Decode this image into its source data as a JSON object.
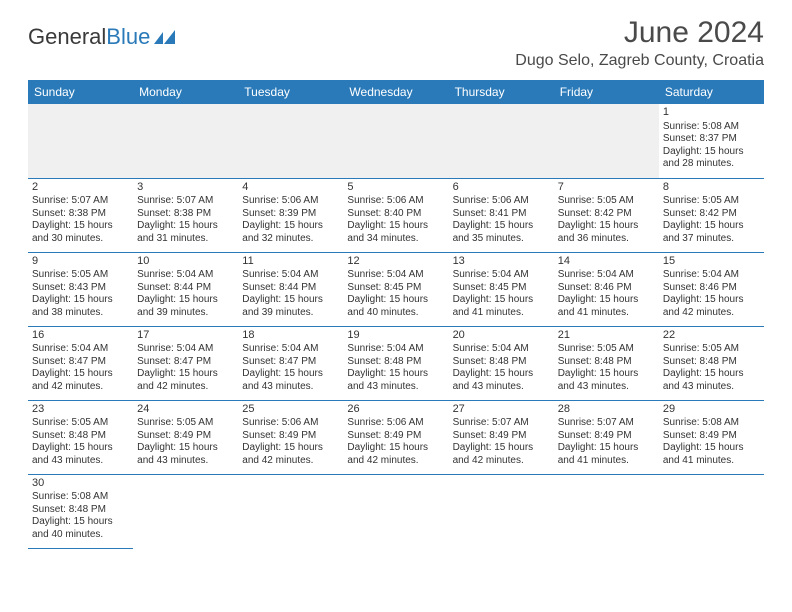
{
  "logo": {
    "general": "General",
    "blue": "Blue"
  },
  "title": "June 2024",
  "location": "Dugo Selo, Zagreb County, Croatia",
  "headers": [
    "Sunday",
    "Monday",
    "Tuesday",
    "Wednesday",
    "Thursday",
    "Friday",
    "Saturday"
  ],
  "header_bg": "#2a7ab9",
  "header_fg": "#ffffff",
  "days": {
    "1": {
      "sunrise": "5:08 AM",
      "sunset": "8:37 PM",
      "daylight": "15 hours and 28 minutes."
    },
    "2": {
      "sunrise": "5:07 AM",
      "sunset": "8:38 PM",
      "daylight": "15 hours and 30 minutes."
    },
    "3": {
      "sunrise": "5:07 AM",
      "sunset": "8:38 PM",
      "daylight": "15 hours and 31 minutes."
    },
    "4": {
      "sunrise": "5:06 AM",
      "sunset": "8:39 PM",
      "daylight": "15 hours and 32 minutes."
    },
    "5": {
      "sunrise": "5:06 AM",
      "sunset": "8:40 PM",
      "daylight": "15 hours and 34 minutes."
    },
    "6": {
      "sunrise": "5:06 AM",
      "sunset": "8:41 PM",
      "daylight": "15 hours and 35 minutes."
    },
    "7": {
      "sunrise": "5:05 AM",
      "sunset": "8:42 PM",
      "daylight": "15 hours and 36 minutes."
    },
    "8": {
      "sunrise": "5:05 AM",
      "sunset": "8:42 PM",
      "daylight": "15 hours and 37 minutes."
    },
    "9": {
      "sunrise": "5:05 AM",
      "sunset": "8:43 PM",
      "daylight": "15 hours and 38 minutes."
    },
    "10": {
      "sunrise": "5:04 AM",
      "sunset": "8:44 PM",
      "daylight": "15 hours and 39 minutes."
    },
    "11": {
      "sunrise": "5:04 AM",
      "sunset": "8:44 PM",
      "daylight": "15 hours and 39 minutes."
    },
    "12": {
      "sunrise": "5:04 AM",
      "sunset": "8:45 PM",
      "daylight": "15 hours and 40 minutes."
    },
    "13": {
      "sunrise": "5:04 AM",
      "sunset": "8:45 PM",
      "daylight": "15 hours and 41 minutes."
    },
    "14": {
      "sunrise": "5:04 AM",
      "sunset": "8:46 PM",
      "daylight": "15 hours and 41 minutes."
    },
    "15": {
      "sunrise": "5:04 AM",
      "sunset": "8:46 PM",
      "daylight": "15 hours and 42 minutes."
    },
    "16": {
      "sunrise": "5:04 AM",
      "sunset": "8:47 PM",
      "daylight": "15 hours and 42 minutes."
    },
    "17": {
      "sunrise": "5:04 AM",
      "sunset": "8:47 PM",
      "daylight": "15 hours and 42 minutes."
    },
    "18": {
      "sunrise": "5:04 AM",
      "sunset": "8:47 PM",
      "daylight": "15 hours and 43 minutes."
    },
    "19": {
      "sunrise": "5:04 AM",
      "sunset": "8:48 PM",
      "daylight": "15 hours and 43 minutes."
    },
    "20": {
      "sunrise": "5:04 AM",
      "sunset": "8:48 PM",
      "daylight": "15 hours and 43 minutes."
    },
    "21": {
      "sunrise": "5:05 AM",
      "sunset": "8:48 PM",
      "daylight": "15 hours and 43 minutes."
    },
    "22": {
      "sunrise": "5:05 AM",
      "sunset": "8:48 PM",
      "daylight": "15 hours and 43 minutes."
    },
    "23": {
      "sunrise": "5:05 AM",
      "sunset": "8:48 PM",
      "daylight": "15 hours and 43 minutes."
    },
    "24": {
      "sunrise": "5:05 AM",
      "sunset": "8:49 PM",
      "daylight": "15 hours and 43 minutes."
    },
    "25": {
      "sunrise": "5:06 AM",
      "sunset": "8:49 PM",
      "daylight": "15 hours and 42 minutes."
    },
    "26": {
      "sunrise": "5:06 AM",
      "sunset": "8:49 PM",
      "daylight": "15 hours and 42 minutes."
    },
    "27": {
      "sunrise": "5:07 AM",
      "sunset": "8:49 PM",
      "daylight": "15 hours and 42 minutes."
    },
    "28": {
      "sunrise": "5:07 AM",
      "sunset": "8:49 PM",
      "daylight": "15 hours and 41 minutes."
    },
    "29": {
      "sunrise": "5:08 AM",
      "sunset": "8:49 PM",
      "daylight": "15 hours and 41 minutes."
    },
    "30": {
      "sunrise": "5:08 AM",
      "sunset": "8:48 PM",
      "daylight": "15 hours and 40 minutes."
    }
  },
  "labels": {
    "sunrise": "Sunrise:",
    "sunset": "Sunset:",
    "daylight": "Daylight:"
  },
  "layout": [
    [
      null,
      null,
      null,
      null,
      null,
      null,
      "1"
    ],
    [
      "2",
      "3",
      "4",
      "5",
      "6",
      "7",
      "8"
    ],
    [
      "9",
      "10",
      "11",
      "12",
      "13",
      "14",
      "15"
    ],
    [
      "16",
      "17",
      "18",
      "19",
      "20",
      "21",
      "22"
    ],
    [
      "23",
      "24",
      "25",
      "26",
      "27",
      "28",
      "29"
    ],
    [
      "30",
      null,
      null,
      null,
      null,
      null,
      null
    ]
  ]
}
